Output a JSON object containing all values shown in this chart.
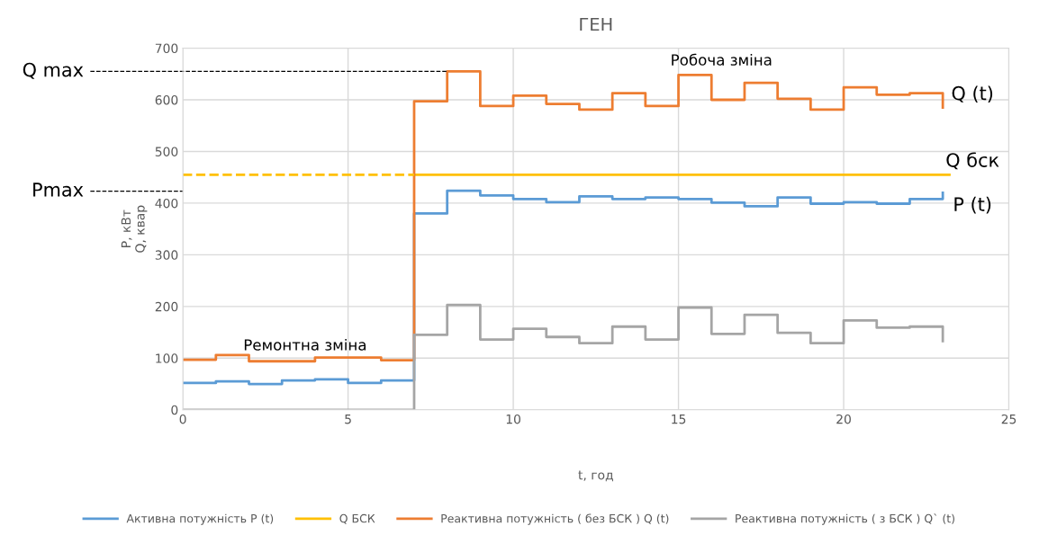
{
  "chart_data": {
    "type": "step",
    "title": "ГЕН",
    "xlabel": "t, год",
    "ylabel": "P, кВт\nQ, квар",
    "xlim": [
      0,
      25
    ],
    "xticks": [
      0,
      5,
      10,
      15,
      20,
      25
    ],
    "ylim": [
      0,
      700
    ],
    "yticks": [
      0,
      100,
      200,
      300,
      400,
      500,
      600,
      700
    ],
    "grid": true,
    "legend": "bottom",
    "x": [
      0,
      1,
      2,
      3,
      4,
      5,
      6,
      7,
      8,
      9,
      10,
      11,
      12,
      13,
      14,
      15,
      16,
      17,
      18,
      19,
      20,
      21,
      22,
      23
    ],
    "series": [
      {
        "name": "Активна потужність P (t)",
        "color": "#5b9bd5",
        "values": [
          52,
          55,
          50,
          57,
          59,
          52,
          57,
          380,
          424,
          415,
          408,
          402,
          413,
          408,
          411,
          408,
          401,
          394,
          411,
          399,
          402,
          399,
          408,
          420
        ]
      },
      {
        "name": "Q БСК",
        "type": "line",
        "color": "#ffc000",
        "x": [
          7,
          23.2
        ],
        "values": [
          455,
          455
        ]
      },
      {
        "name": "Реактивна потужність ( без БСК ) Q (t)",
        "color": "#ed7d31",
        "values": [
          97,
          106,
          94,
          94,
          101,
          101,
          96,
          597,
          655,
          588,
          608,
          592,
          581,
          613,
          588,
          648,
          600,
          633,
          602,
          581,
          624,
          610,
          613,
          585
        ]
      },
      {
        "name": "Реактивна потужність ( з БСК ) Q` (t)",
        "color": "#a5a5a5",
        "values": [
          0,
          0,
          0,
          0,
          0,
          0,
          0,
          145,
          203,
          136,
          157,
          141,
          129,
          161,
          136,
          198,
          147,
          184,
          149,
          129,
          173,
          159,
          161,
          133
        ]
      },
      {
        "type": "line",
        "color": "#ffc000",
        "line_style": "dashed",
        "x": [
          0,
          7
        ],
        "values": [
          455,
          455
        ]
      }
    ],
    "ref_lines": [
      {
        "axis": "y",
        "value": 655,
        "label": "Q max",
        "color": "#000000",
        "line_style": "dashed"
      },
      {
        "axis": "y",
        "value": 423,
        "label": "Pmax",
        "color": "#000000",
        "line_style": "dashed"
      }
    ],
    "annotations": [
      "Робоча зміна",
      "Ремонтна зміна",
      "Q (t)",
      "Q бск",
      "P (t)"
    ]
  }
}
